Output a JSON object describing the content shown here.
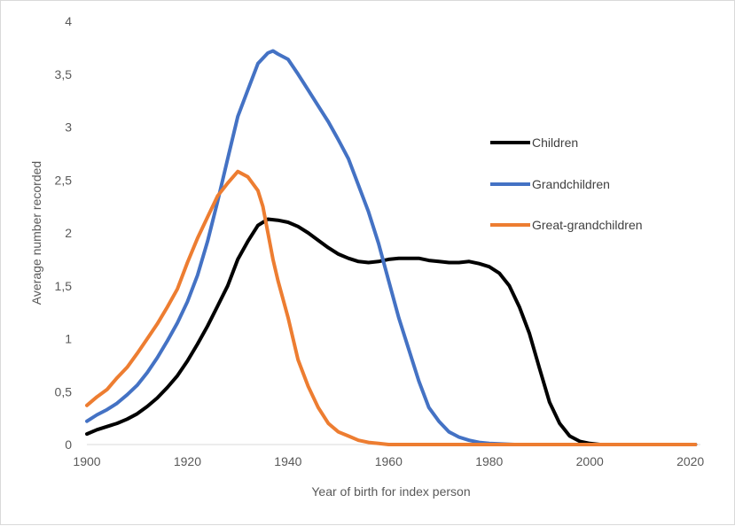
{
  "chart_data": {
    "type": "line",
    "title": "",
    "xlabel": "Year of birth for index person",
    "ylabel": "Average number recorded",
    "xlim": [
      1900,
      2022
    ],
    "ylim": [
      0,
      4
    ],
    "grid": false,
    "legend_position": "right",
    "x_ticks": [
      1900,
      1920,
      1940,
      1960,
      1980,
      2000,
      2020
    ],
    "x_tick_labels": [
      "1900",
      "1920",
      "1940",
      "1960",
      "1980",
      "2000",
      "2020"
    ],
    "y_ticks": [
      0,
      0.5,
      1,
      1.5,
      2,
      2.5,
      3,
      3.5,
      4
    ],
    "y_tick_labels": [
      "0",
      "0,5",
      "1",
      "1,5",
      "2",
      "2,5",
      "3",
      "3,5",
      "4"
    ],
    "series": [
      {
        "name": "Children",
        "color": "#000000",
        "x": [
          1900,
          1902,
          1904,
          1906,
          1908,
          1910,
          1912,
          1914,
          1916,
          1918,
          1920,
          1922,
          1924,
          1926,
          1928,
          1930,
          1932,
          1934,
          1936,
          1938,
          1940,
          1942,
          1944,
          1946,
          1948,
          1950,
          1952,
          1954,
          1956,
          1958,
          1960,
          1962,
          1964,
          1966,
          1968,
          1970,
          1972,
          1974,
          1976,
          1978,
          1980,
          1982,
          1984,
          1986,
          1988,
          1990,
          1992,
          1994,
          1996,
          1998,
          2000,
          2002,
          2005,
          2010,
          2015,
          2020,
          2021
        ],
        "y": [
          0.1,
          0.14,
          0.17,
          0.2,
          0.24,
          0.29,
          0.36,
          0.44,
          0.54,
          0.65,
          0.79,
          0.95,
          1.12,
          1.31,
          1.5,
          1.75,
          1.92,
          2.07,
          2.13,
          2.12,
          2.1,
          2.06,
          2.0,
          1.93,
          1.86,
          1.8,
          1.76,
          1.73,
          1.72,
          1.73,
          1.75,
          1.76,
          1.76,
          1.76,
          1.74,
          1.73,
          1.72,
          1.72,
          1.73,
          1.71,
          1.68,
          1.62,
          1.5,
          1.3,
          1.05,
          0.72,
          0.4,
          0.2,
          0.08,
          0.03,
          0.01,
          0.0,
          0.0,
          0.0,
          0.0,
          0.0,
          0.0
        ]
      },
      {
        "name": "Grandchildren",
        "color": "#4472c4",
        "x": [
          1900,
          1902,
          1904,
          1906,
          1908,
          1910,
          1912,
          1914,
          1916,
          1918,
          1920,
          1922,
          1924,
          1926,
          1928,
          1930,
          1932,
          1934,
          1936,
          1937,
          1938,
          1940,
          1942,
          1944,
          1946,
          1948,
          1950,
          1952,
          1954,
          1956,
          1958,
          1960,
          1962,
          1964,
          1966,
          1968,
          1970,
          1972,
          1974,
          1976,
          1978,
          1980,
          1985,
          1990,
          2000,
          2010,
          2021
        ],
        "y": [
          0.22,
          0.28,
          0.33,
          0.39,
          0.47,
          0.56,
          0.68,
          0.82,
          0.98,
          1.15,
          1.35,
          1.6,
          1.92,
          2.3,
          2.7,
          3.1,
          3.35,
          3.6,
          3.7,
          3.72,
          3.69,
          3.64,
          3.5,
          3.35,
          3.2,
          3.05,
          2.88,
          2.7,
          2.45,
          2.2,
          1.9,
          1.55,
          1.2,
          0.9,
          0.6,
          0.35,
          0.22,
          0.12,
          0.07,
          0.04,
          0.02,
          0.01,
          0.0,
          0.0,
          0.0,
          0.0,
          0.0
        ]
      },
      {
        "name": "Great-grandchildren",
        "color": "#ed7d31",
        "x": [
          1900,
          1902,
          1904,
          1906,
          1908,
          1910,
          1912,
          1914,
          1916,
          1918,
          1920,
          1922,
          1924,
          1926,
          1928,
          1930,
          1932,
          1934,
          1935,
          1936,
          1937,
          1938,
          1940,
          1942,
          1944,
          1946,
          1948,
          1950,
          1952,
          1954,
          1956,
          1958,
          1960,
          1962,
          1965,
          1970,
          1980,
          1990,
          2000,
          2010,
          2021
        ],
        "y": [
          0.37,
          0.45,
          0.52,
          0.63,
          0.73,
          0.86,
          1.0,
          1.14,
          1.3,
          1.47,
          1.72,
          1.95,
          2.15,
          2.35,
          2.47,
          2.58,
          2.53,
          2.4,
          2.25,
          2.0,
          1.75,
          1.55,
          1.2,
          0.8,
          0.55,
          0.35,
          0.2,
          0.12,
          0.08,
          0.04,
          0.02,
          0.01,
          0.0,
          0.0,
          0.0,
          0.0,
          0.0,
          0.0,
          0.0,
          0.0,
          0.0
        ]
      }
    ]
  }
}
